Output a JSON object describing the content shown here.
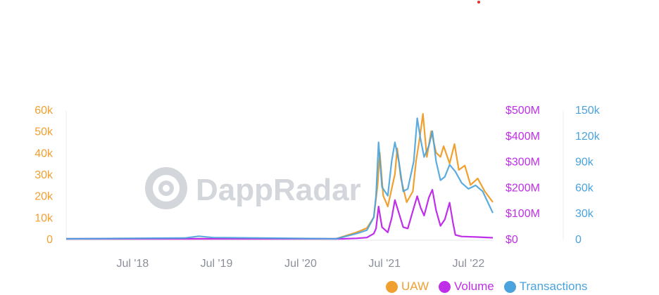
{
  "chart_data": {
    "type": "line",
    "x_tick_labels": [
      "Jul '18",
      "Jul '19",
      "Jul '20",
      "Jul '21",
      "Jul '22"
    ],
    "x_range": [
      "2017-09-15",
      "2022-10-15"
    ],
    "axes": {
      "uaw": {
        "color": "#f0a030",
        "range": [
          0,
          60000
        ],
        "tick_labels": [
          "0",
          "10k",
          "20k",
          "30k",
          "40k",
          "50k",
          "60k"
        ]
      },
      "volume": {
        "color": "#c02fe8",
        "range": [
          0,
          500000000
        ],
        "tick_labels": [
          "$0",
          "$100M",
          "$200M",
          "$300M",
          "$400M",
          "$500M"
        ]
      },
      "transactions": {
        "color": "#4aa3dc",
        "range": [
          0,
          150000
        ],
        "tick_labels": [
          "0",
          "30k",
          "60k",
          "90k",
          "120k",
          "150k"
        ]
      }
    },
    "grid": false,
    "legend_position": "bottom-right",
    "series": [
      {
        "name": "UAW",
        "axis": "uaw",
        "color": "#f0a030",
        "points": [
          [
            "2017-09-15",
            0
          ],
          [
            "2020-12-01",
            0
          ],
          [
            "2021-01-15",
            1500
          ],
          [
            "2021-03-01",
            3000
          ],
          [
            "2021-04-15",
            5000
          ],
          [
            "2021-05-15",
            10000
          ],
          [
            "2021-06-01",
            25000
          ],
          [
            "2021-06-10",
            40000
          ],
          [
            "2021-06-25",
            20000
          ],
          [
            "2021-07-15",
            15000
          ],
          [
            "2021-08-15",
            30000
          ],
          [
            "2021-08-25",
            42000
          ],
          [
            "2021-09-10",
            28000
          ],
          [
            "2021-10-05",
            17000
          ],
          [
            "2021-11-01",
            22000
          ],
          [
            "2021-11-15",
            36000
          ],
          [
            "2021-12-01",
            47000
          ],
          [
            "2021-12-15",
            58000
          ],
          [
            "2022-01-01",
            38000
          ],
          [
            "2022-01-20",
            50000
          ],
          [
            "2022-02-10",
            40000
          ],
          [
            "2022-03-01",
            38000
          ],
          [
            "2022-03-15",
            43000
          ],
          [
            "2022-04-10",
            35000
          ],
          [
            "2022-05-01",
            44000
          ],
          [
            "2022-05-20",
            32000
          ],
          [
            "2022-06-15",
            34000
          ],
          [
            "2022-07-10",
            25000
          ],
          [
            "2022-08-10",
            28000
          ],
          [
            "2022-09-10",
            22000
          ],
          [
            "2022-10-15",
            17000
          ]
        ]
      },
      {
        "name": "Volume",
        "axis": "volume",
        "color": "#c02fe8",
        "points": [
          [
            "2017-09-15",
            0
          ],
          [
            "2021-01-01",
            0
          ],
          [
            "2021-03-01",
            2000000
          ],
          [
            "2021-04-15",
            5000000
          ],
          [
            "2021-05-15",
            20000000
          ],
          [
            "2021-05-25",
            40000000
          ],
          [
            "2021-06-05",
            125000000
          ],
          [
            "2021-06-20",
            45000000
          ],
          [
            "2021-07-15",
            25000000
          ],
          [
            "2021-08-01",
            80000000
          ],
          [
            "2021-08-15",
            150000000
          ],
          [
            "2021-09-01",
            100000000
          ],
          [
            "2021-09-20",
            45000000
          ],
          [
            "2021-10-10",
            40000000
          ],
          [
            "2021-11-05",
            120000000
          ],
          [
            "2021-11-20",
            165000000
          ],
          [
            "2021-12-05",
            120000000
          ],
          [
            "2021-12-20",
            90000000
          ],
          [
            "2022-01-10",
            160000000
          ],
          [
            "2022-01-25",
            190000000
          ],
          [
            "2022-02-10",
            110000000
          ],
          [
            "2022-03-01",
            50000000
          ],
          [
            "2022-03-20",
            75000000
          ],
          [
            "2022-04-10",
            140000000
          ],
          [
            "2022-04-25",
            60000000
          ],
          [
            "2022-05-05",
            15000000
          ],
          [
            "2022-06-01",
            9000000
          ],
          [
            "2022-08-01",
            7000000
          ],
          [
            "2022-10-15",
            4000000
          ]
        ]
      },
      {
        "name": "Transactions",
        "axis": "transactions",
        "color": "#4aa3dc",
        "points": [
          [
            "2017-09-15",
            0
          ],
          [
            "2019-02-15",
            1000
          ],
          [
            "2019-04-15",
            3000
          ],
          [
            "2019-06-15",
            1500
          ],
          [
            "2020-12-01",
            0
          ],
          [
            "2021-01-15",
            3000
          ],
          [
            "2021-03-01",
            6000
          ],
          [
            "2021-04-15",
            10000
          ],
          [
            "2021-05-15",
            25000
          ],
          [
            "2021-05-25",
            50000
          ],
          [
            "2021-06-05",
            112000
          ],
          [
            "2021-06-20",
            60000
          ],
          [
            "2021-07-15",
            50000
          ],
          [
            "2021-08-01",
            90000
          ],
          [
            "2021-08-15",
            112000
          ],
          [
            "2021-09-01",
            90000
          ],
          [
            "2021-09-20",
            55000
          ],
          [
            "2021-10-10",
            58000
          ],
          [
            "2021-11-05",
            90000
          ],
          [
            "2021-11-20",
            140000
          ],
          [
            "2021-12-05",
            115000
          ],
          [
            "2021-12-20",
            95000
          ],
          [
            "2022-01-10",
            108000
          ],
          [
            "2022-01-25",
            125000
          ],
          [
            "2022-02-10",
            90000
          ],
          [
            "2022-03-01",
            68000
          ],
          [
            "2022-03-20",
            72000
          ],
          [
            "2022-04-10",
            86000
          ],
          [
            "2022-05-05",
            78000
          ],
          [
            "2022-06-01",
            65000
          ],
          [
            "2022-07-01",
            58000
          ],
          [
            "2022-08-01",
            62000
          ],
          [
            "2022-09-01",
            55000
          ],
          [
            "2022-10-01",
            38000
          ],
          [
            "2022-10-15",
            30000
          ]
        ]
      }
    ],
    "watermark": "DappRadar"
  },
  "legend": {
    "uaw_label": "UAW",
    "volume_label": "Volume",
    "transactions_label": "Transactions"
  },
  "colors": {
    "uaw": "#f0a030",
    "volume": "#c02fe8",
    "transactions": "#4aa3dc"
  }
}
